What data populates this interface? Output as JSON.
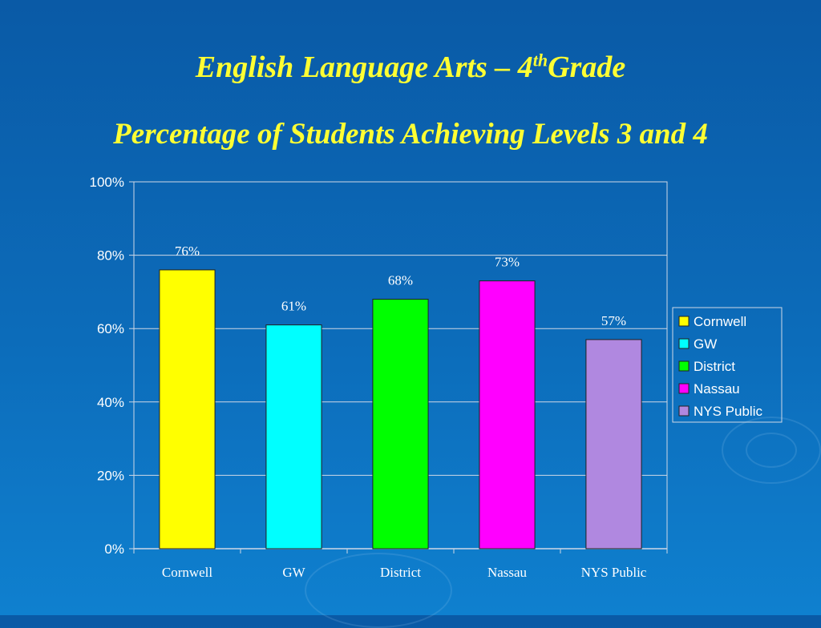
{
  "title": {
    "line1_prefix": "English Language Arts – 4",
    "line1_sup": "th",
    "line1_suffix": "Grade",
    "line2": "Percentage of Students Achieving Levels 3 and 4"
  },
  "colors": {
    "background": "#0c6cba",
    "title": "#ffff33",
    "grid": "#cfd8e6",
    "text": "#ffffff"
  },
  "chart_data": {
    "type": "bar",
    "categories": [
      "Cornwell",
      "GW",
      "District",
      "Nassau",
      "NYS Public"
    ],
    "values": [
      76,
      61,
      68,
      73,
      57
    ],
    "data_labels": [
      "76%",
      "61%",
      "68%",
      "73%",
      "57%"
    ],
    "colors": [
      "#ffff00",
      "#00ffff",
      "#00ff00",
      "#ff00ff",
      "#b088e0"
    ],
    "ylim": [
      0,
      100
    ],
    "yticks": [
      0,
      20,
      40,
      60,
      80,
      100
    ],
    "ytick_labels": [
      "0%",
      "20%",
      "40%",
      "60%",
      "80%",
      "100%"
    ],
    "grid": true,
    "legend": {
      "placement": "right",
      "entries": [
        "Cornwell",
        "GW",
        "District",
        "Nassau",
        "NYS Public"
      ]
    }
  }
}
